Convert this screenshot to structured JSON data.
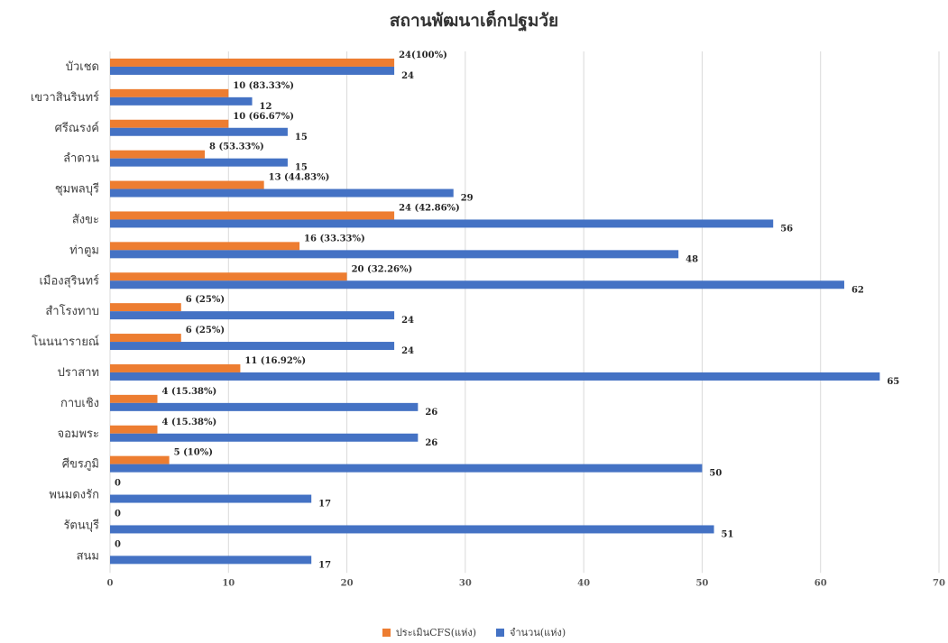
{
  "chart_data": {
    "type": "bar",
    "orientation": "horizontal",
    "title": "สถานพัฒนาเด็กปฐมวัย",
    "categories": [
      "บัวเชด",
      "เขวาสินรินทร์",
      "ศรีณรงค์",
      "ลำดวน",
      "ชุมพลบุรี",
      "สังขะ",
      "ท่าตูม",
      "เมืองสุรินทร์",
      "สำโรงทาบ",
      "โนนนารายณ์",
      "ปราสาท",
      "กาบเชิง",
      "จอมพระ",
      "ศีขรภูมิ",
      "พนมดงรัก",
      "รัตนบุรี",
      "สนม"
    ],
    "series": [
      {
        "name": "ประเมินCFS(แห่ง)",
        "color": "#ED7D31",
        "values": [
          24,
          10,
          10,
          8,
          13,
          24,
          16,
          20,
          6,
          6,
          11,
          4,
          4,
          5,
          0,
          0,
          0
        ],
        "labels": [
          "24(100%)",
          "10 (83.33%)",
          "10 (66.67%)",
          "8 (53.33%)",
          "13 (44.83%)",
          "24 (42.86%)",
          "16 (33.33%)",
          "20 (32.26%)",
          "6 (25%)",
          "6 (25%)",
          "11 (16.92%)",
          "4 (15.38%)",
          "4 (15.38%)",
          "5 (10%)",
          "0",
          "0",
          "0"
        ]
      },
      {
        "name": "จำนวน(แห่ง)",
        "color": "#4472C4",
        "values": [
          24,
          12,
          15,
          15,
          29,
          56,
          48,
          62,
          24,
          24,
          65,
          26,
          26,
          50,
          17,
          51,
          17
        ],
        "labels": [
          "24",
          "12",
          "15",
          "15",
          "29",
          "56",
          "48",
          "62",
          "24",
          "24",
          "65",
          "26",
          "26",
          "50",
          "17",
          "51",
          "17"
        ]
      }
    ],
    "xlim": [
      0,
      70
    ],
    "xticks": [
      0,
      10,
      20,
      30,
      40,
      50,
      60,
      70
    ],
    "grid": true,
    "legend_position": "bottom"
  }
}
